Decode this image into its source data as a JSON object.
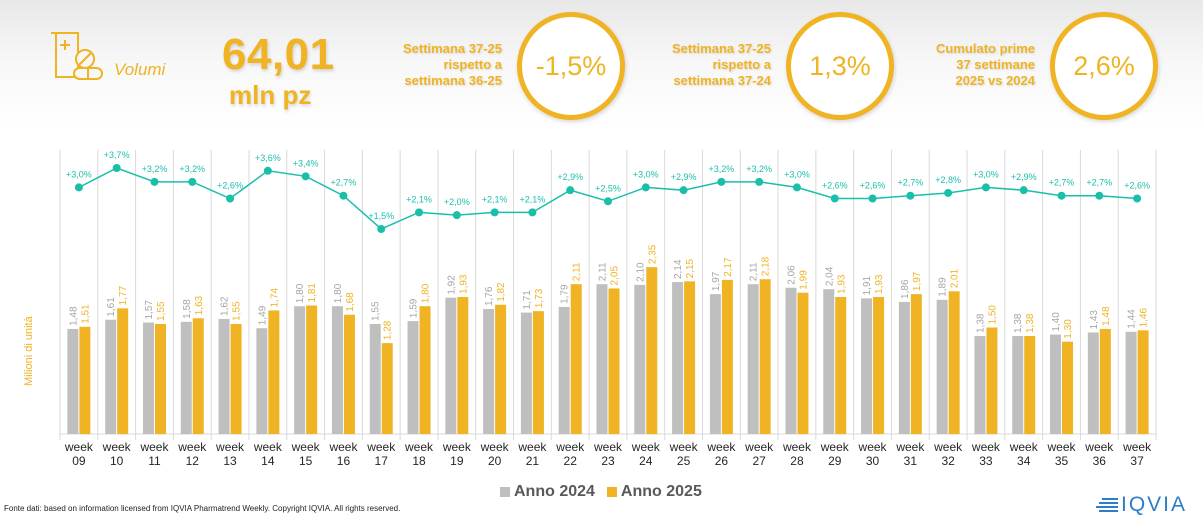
{
  "header": {
    "icon": "pill-bottle-icon",
    "label": "Volumi",
    "value": "64,01",
    "unit": "mln pz"
  },
  "kpis": [
    {
      "lines": [
        "Settimana 37-25",
        "rispetto a",
        "settimana 36-25"
      ],
      "value": "-1,5%"
    },
    {
      "lines": [
        "Settimana 37-25",
        "rispetto a",
        "settimana 37-24"
      ],
      "value": "1,3%"
    },
    {
      "lines": [
        "Cumulato prime",
        "37 settimane",
        "2025 vs 2024"
      ],
      "value": "2,6%"
    }
  ],
  "colors": {
    "anno_2024": "#bfbfbf",
    "anno_2025": "#efb323",
    "line": "#1abfaa",
    "accent": "#efb323"
  },
  "chart_data": {
    "type": "bar",
    "title": "",
    "xlabel": "",
    "ylabel": "Milioni di unità",
    "ylim": [
      0,
      2.6
    ],
    "grid": "vertical separators",
    "legend_position": "bottom-center",
    "categories": [
      [
        "week",
        "09"
      ],
      [
        "week",
        "10"
      ],
      [
        "week",
        "11"
      ],
      [
        "week",
        "12"
      ],
      [
        "week",
        "13"
      ],
      [
        "week",
        "14"
      ],
      [
        "week",
        "15"
      ],
      [
        "week",
        "16"
      ],
      [
        "week",
        "17"
      ],
      [
        "week",
        "18"
      ],
      [
        "week",
        "19"
      ],
      [
        "week",
        "20"
      ],
      [
        "week",
        "21"
      ],
      [
        "week",
        "22"
      ],
      [
        "week",
        "23"
      ],
      [
        "week",
        "24"
      ],
      [
        "week",
        "25"
      ],
      [
        "week",
        "26"
      ],
      [
        "week",
        "27"
      ],
      [
        "week",
        "28"
      ],
      [
        "week",
        "29"
      ],
      [
        "week",
        "30"
      ],
      [
        "week",
        "31"
      ],
      [
        "week",
        "32"
      ],
      [
        "week",
        "33"
      ],
      [
        "week",
        "34"
      ],
      [
        "week",
        "35"
      ],
      [
        "week",
        "36"
      ],
      [
        "week",
        "37"
      ]
    ],
    "series": [
      {
        "name": "Anno 2024",
        "values": [
          1.48,
          1.61,
          1.57,
          1.58,
          1.62,
          1.49,
          1.8,
          1.8,
          1.55,
          1.59,
          1.92,
          1.76,
          1.71,
          1.79,
          2.11,
          2.1,
          2.14,
          1.97,
          2.11,
          2.06,
          2.04,
          1.91,
          1.86,
          1.89,
          1.38,
          1.38,
          1.4,
          1.43,
          1.44
        ],
        "labels": [
          "1,48",
          "1,61",
          "1,57",
          "1,58",
          "1,62",
          "1,49",
          "1,80",
          "1,80",
          "1,55",
          "1,59",
          "1,92",
          "1,76",
          "1,71",
          "1,79",
          "2,11",
          "2,10",
          "2,14",
          "1,97",
          "2,11",
          "2,06",
          "2,04",
          "1,91",
          "1,86",
          "1,89",
          "1,38",
          "1,38",
          "1,40",
          "1,43",
          "1,44"
        ]
      },
      {
        "name": "Anno 2025",
        "values": [
          1.51,
          1.77,
          1.55,
          1.63,
          1.55,
          1.74,
          1.81,
          1.68,
          1.28,
          1.8,
          1.93,
          1.82,
          1.73,
          2.11,
          2.05,
          2.35,
          2.15,
          2.17,
          2.18,
          1.99,
          1.93,
          1.93,
          1.97,
          2.01,
          1.5,
          1.38,
          1.3,
          1.48,
          1.46
        ],
        "labels": [
          "1,51",
          "1,77",
          "1,55",
          "1,63",
          "1,55",
          "1,74",
          "1,81",
          "1,68",
          "1,28",
          "1,80",
          "1,93",
          "1,82",
          "1,73",
          "2,11",
          "2,05",
          "2,35",
          "2,15",
          "2,17",
          "2,18",
          "1,99",
          "1,93",
          "1,93",
          "1,97",
          "2,01",
          "1,50",
          "1,38",
          "1,30",
          "1,48",
          "1,46"
        ]
      }
    ],
    "line_series": {
      "name": "Cumulative % growth",
      "values": [
        3.0,
        3.7,
        3.2,
        3.2,
        2.6,
        3.6,
        3.4,
        2.7,
        1.5,
        2.1,
        2.0,
        2.1,
        2.1,
        2.9,
        2.5,
        3.0,
        2.9,
        3.2,
        3.2,
        3.0,
        2.6,
        2.6,
        2.7,
        2.8,
        3.0,
        2.9,
        2.7,
        2.7,
        2.6
      ],
      "labels": [
        "+3,0%",
        "+3,7%",
        "+3,2%",
        "+3,2%",
        "+2,6%",
        "+3,6%",
        "+3,4%",
        "+2,7%",
        "+1,5%",
        "+2,1%",
        "+2,0%",
        "+2,1%",
        "+2,1%",
        "+2,9%",
        "+2,5%",
        "+3,0%",
        "+2,9%",
        "+3,2%",
        "+3,2%",
        "+3,0%",
        "+2,6%",
        "+2,6%",
        "+2,7%",
        "+2,8%",
        "+3,0%",
        "+2,9%",
        "+2,7%",
        "+2,7%",
        "+2,6%"
      ],
      "range": [
        1.0,
        4.0
      ]
    }
  },
  "legend": [
    {
      "label": "Anno 2024"
    },
    {
      "label": "Anno 2025"
    }
  ],
  "footer": "Fonte dati: based on information licensed from IQVIA Pharmatrend Weekly. Copyright IQVIA. All rights reserved.",
  "logo": {
    "text": "IQVIA",
    "icon": "iqvia-logo-icon"
  }
}
